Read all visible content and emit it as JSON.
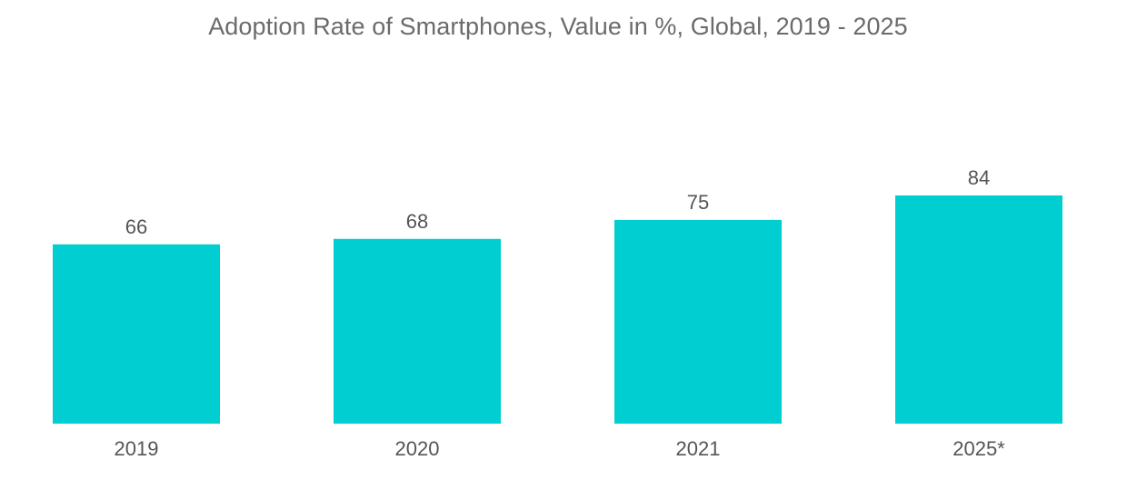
{
  "chart_data": {
    "type": "bar",
    "title": "Adoption Rate of Smartphones, Value in %, Global, 2019 - 2025",
    "categories": [
      "2019",
      "2020",
      "2021",
      "2025*"
    ],
    "values": [
      66,
      68,
      75,
      84
    ],
    "data_labels": [
      "66",
      "68",
      "75",
      "84"
    ],
    "xlabel": "",
    "ylabel": "",
    "ylim": [
      0,
      84
    ],
    "grid": false,
    "legend": "none",
    "bar_color": "#00ced1"
  }
}
